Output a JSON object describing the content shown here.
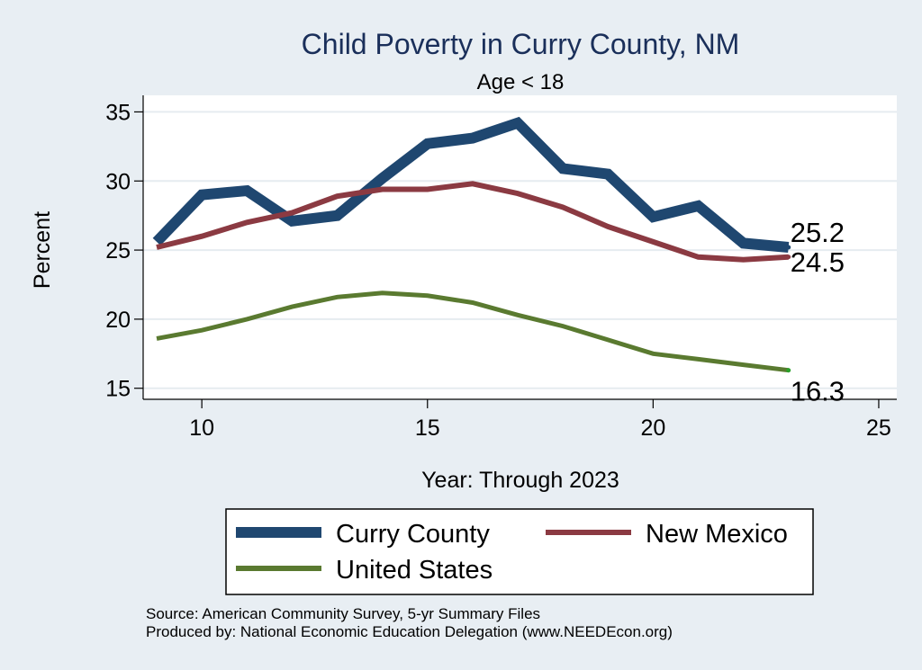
{
  "chart_data": {
    "type": "line",
    "title": "Child Poverty in Curry County, NM",
    "subtitle": "Age < 18",
    "xlabel": "Year: Through 2023",
    "ylabel": "Percent",
    "xlim": [
      8.7,
      25.4
    ],
    "ylim": [
      14.2,
      36.2
    ],
    "xticks": [
      "10",
      "15",
      "20",
      "25"
    ],
    "yticks": [
      "15",
      "20",
      "25",
      "30",
      "35"
    ],
    "grid": true,
    "x": [
      9,
      10,
      11,
      12,
      13,
      14,
      15,
      16,
      17,
      18,
      19,
      20,
      21,
      22,
      23
    ],
    "series": [
      {
        "name": "Curry County",
        "color": "#1f4770",
        "values": [
          25.6,
          29.0,
          29.3,
          27.1,
          27.5,
          30.2,
          32.7,
          33.1,
          34.2,
          30.9,
          30.5,
          27.4,
          28.2,
          25.5,
          25.2
        ],
        "end_label": "25.2"
      },
      {
        "name": "New Mexico",
        "color": "#8b3a42",
        "values": [
          25.2,
          26.0,
          27.0,
          27.7,
          28.9,
          29.4,
          29.4,
          29.8,
          29.1,
          28.1,
          26.7,
          25.6,
          24.5,
          24.3,
          24.5
        ],
        "end_label": "24.5"
      },
      {
        "name": "United States",
        "color": "#5a7a30",
        "values": [
          18.6,
          19.2,
          20.0,
          20.9,
          21.6,
          21.9,
          21.7,
          21.2,
          20.3,
          19.5,
          18.5,
          17.5,
          17.1,
          16.7,
          16.3
        ],
        "end_label": "16.3"
      }
    ],
    "legend": {
      "position": "bottom",
      "entries": [
        "Curry County",
        "New Mexico",
        "United States"
      ]
    },
    "notes": [
      "Source: American Community Survey, 5-yr Summary Files",
      "Produced by: National Economic Education Delegation (www.NEEDEcon.org)"
    ]
  }
}
